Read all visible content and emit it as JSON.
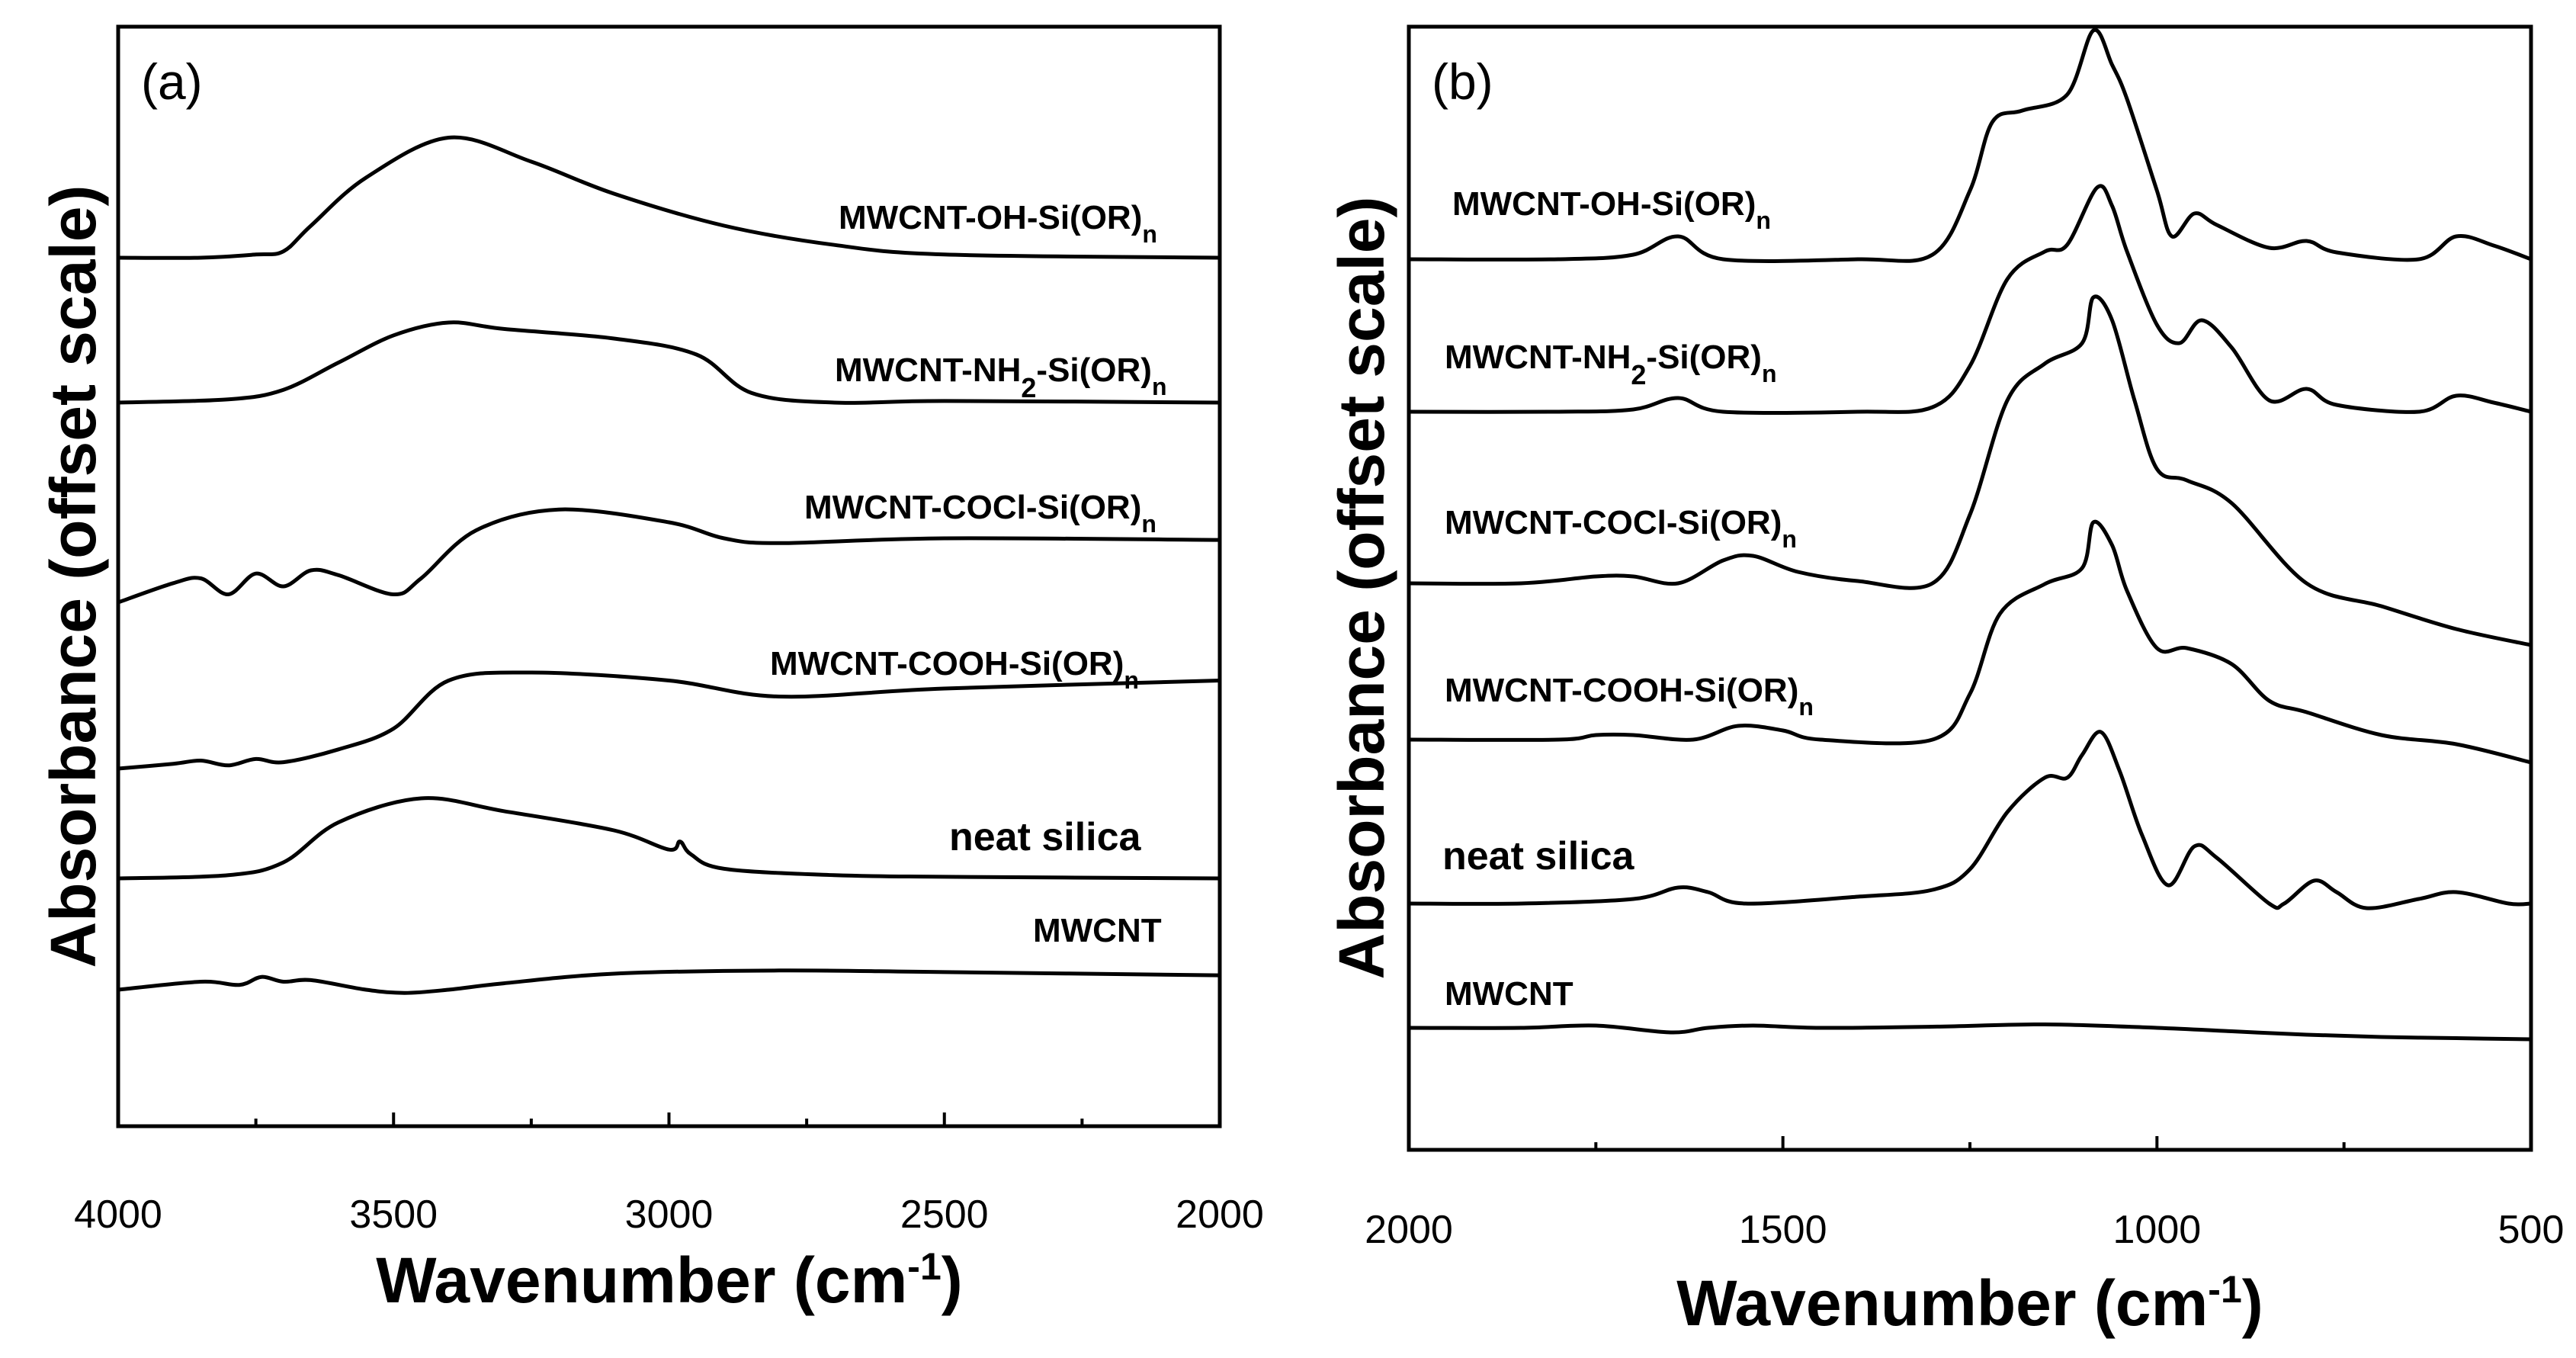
{
  "chart_data": [
    {
      "type": "line",
      "panel_label": "(a)",
      "xlabel": "Wavenumber (cm",
      "xlabel_sup": "-1",
      "xlabel_close": ")",
      "ylabel": "Absorbance (offset scale)",
      "xlim": [
        4000,
        2000
      ],
      "x_ticks": [
        4000,
        3500,
        3000,
        2500,
        2000
      ],
      "y_ticks_shown": false,
      "series": [
        {
          "name": "MWCNT-OH-Si(OR)",
          "sub": "n",
          "mid": "",
          "points": [
            [
              4000,
              0.0
            ],
            [
              3850,
              0.0
            ],
            [
              3750,
              0.02
            ],
            [
              3700,
              0.04
            ],
            [
              3650,
              0.2
            ],
            [
              3550,
              0.5
            ],
            [
              3400,
              0.75
            ],
            [
              3250,
              0.6
            ],
            [
              3100,
              0.4
            ],
            [
              2900,
              0.2
            ],
            [
              2700,
              0.08
            ],
            [
              2500,
              0.02
            ],
            [
              2000,
              0.0
            ]
          ]
        },
        {
          "name": "MWCNT-NH",
          "sub": "n",
          "mid": "2",
          "tail": "-Si(OR)",
          "points": [
            [
              4000,
              0.0
            ],
            [
              3800,
              0.02
            ],
            [
              3700,
              0.08
            ],
            [
              3600,
              0.25
            ],
            [
              3500,
              0.42
            ],
            [
              3400,
              0.5
            ],
            [
              3300,
              0.46
            ],
            [
              3100,
              0.4
            ],
            [
              2950,
              0.3
            ],
            [
              2850,
              0.06
            ],
            [
              2700,
              0.0
            ],
            [
              2500,
              0.01
            ],
            [
              2000,
              0.0
            ]
          ]
        },
        {
          "name": "MWCNT-COCl-Si(OR)",
          "sub": "n",
          "mid": "",
          "points": [
            [
              4000,
              0.0
            ],
            [
              3900,
              0.12
            ],
            [
              3850,
              0.15
            ],
            [
              3800,
              0.05
            ],
            [
              3750,
              0.18
            ],
            [
              3700,
              0.1
            ],
            [
              3650,
              0.2
            ],
            [
              3600,
              0.17
            ],
            [
              3500,
              0.05
            ],
            [
              3450,
              0.15
            ],
            [
              3350,
              0.45
            ],
            [
              3200,
              0.58
            ],
            [
              3000,
              0.5
            ],
            [
              2900,
              0.4
            ],
            [
              2800,
              0.37
            ],
            [
              2500,
              0.4
            ],
            [
              2000,
              0.39
            ]
          ]
        },
        {
          "name": "MWCNT-COOH-Si(OR)",
          "sub": "n",
          "mid": "",
          "points": [
            [
              4000,
              0.0
            ],
            [
              3900,
              0.03
            ],
            [
              3850,
              0.05
            ],
            [
              3800,
              0.02
            ],
            [
              3750,
              0.06
            ],
            [
              3700,
              0.04
            ],
            [
              3600,
              0.12
            ],
            [
              3500,
              0.25
            ],
            [
              3400,
              0.55
            ],
            [
              3250,
              0.6
            ],
            [
              3000,
              0.55
            ],
            [
              2800,
              0.45
            ],
            [
              2500,
              0.5
            ],
            [
              2000,
              0.55
            ]
          ]
        },
        {
          "name": "neat silica",
          "sub": "",
          "mid": "",
          "points": [
            [
              4000,
              0.0
            ],
            [
              3800,
              0.02
            ],
            [
              3700,
              0.1
            ],
            [
              3600,
              0.35
            ],
            [
              3450,
              0.5
            ],
            [
              3300,
              0.42
            ],
            [
              3100,
              0.3
            ],
            [
              3000,
              0.18
            ],
            [
              2980,
              0.23
            ],
            [
              2960,
              0.15
            ],
            [
              2900,
              0.06
            ],
            [
              2700,
              0.02
            ],
            [
              2500,
              0.01
            ],
            [
              2000,
              0.0
            ]
          ]
        },
        {
          "name": "MWCNT",
          "sub": "",
          "mid": "",
          "points": [
            [
              4000,
              0.0
            ],
            [
              3850,
              0.05
            ],
            [
              3780,
              0.03
            ],
            [
              3740,
              0.08
            ],
            [
              3700,
              0.05
            ],
            [
              3650,
              0.06
            ],
            [
              3550,
              0.0
            ],
            [
              3480,
              -0.02
            ],
            [
              3400,
              0.0
            ],
            [
              3300,
              0.04
            ],
            [
              3100,
              0.1
            ],
            [
              2800,
              0.12
            ],
            [
              2500,
              0.11
            ],
            [
              2000,
              0.09
            ]
          ]
        }
      ]
    },
    {
      "type": "line",
      "panel_label": "(b)",
      "xlabel": "Wavenumber (cm",
      "xlabel_sup": "-1",
      "xlabel_close": ")",
      "ylabel": "Absorbance (offset scale)",
      "xlim": [
        2000,
        500
      ],
      "x_ticks": [
        2000,
        1500,
        1000,
        500
      ],
      "y_ticks_shown": false,
      "series": [
        {
          "name": "MWCNT-OH-Si(OR)",
          "sub": "n",
          "mid": "",
          "points": [
            [
              2000,
              0.0
            ],
            [
              1800,
              0.0
            ],
            [
              1700,
              0.02
            ],
            [
              1640,
              0.1
            ],
            [
              1580,
              0.0
            ],
            [
              1400,
              0.0
            ],
            [
              1300,
              0.02
            ],
            [
              1250,
              0.3
            ],
            [
              1220,
              0.6
            ],
            [
              1180,
              0.65
            ],
            [
              1120,
              0.72
            ],
            [
              1085,
              1.0
            ],
            [
              1060,
              0.85
            ],
            [
              1040,
              0.7
            ],
            [
              1000,
              0.3
            ],
            [
              980,
              0.1
            ],
            [
              950,
              0.2
            ],
            [
              920,
              0.15
            ],
            [
              850,
              0.05
            ],
            [
              800,
              0.08
            ],
            [
              760,
              0.03
            ],
            [
              650,
              0.0
            ],
            [
              600,
              0.1
            ],
            [
              550,
              0.06
            ],
            [
              500,
              0.0
            ]
          ]
        },
        {
          "name": "MWCNT-NH",
          "sub": "n",
          "mid": "2",
          "tail": "-Si(OR)",
          "points": [
            [
              2000,
              0.0
            ],
            [
              1800,
              0.0
            ],
            [
              1700,
              0.01
            ],
            [
              1640,
              0.06
            ],
            [
              1580,
              0.0
            ],
            [
              1400,
              0.0
            ],
            [
              1300,
              0.02
            ],
            [
              1250,
              0.2
            ],
            [
              1200,
              0.58
            ],
            [
              1150,
              0.7
            ],
            [
              1120,
              0.73
            ],
            [
              1080,
              0.98
            ],
            [
              1060,
              0.9
            ],
            [
              1040,
              0.7
            ],
            [
              1000,
              0.38
            ],
            [
              970,
              0.3
            ],
            [
              940,
              0.4
            ],
            [
              900,
              0.28
            ],
            [
              850,
              0.05
            ],
            [
              800,
              0.1
            ],
            [
              760,
              0.03
            ],
            [
              650,
              0.0
            ],
            [
              600,
              0.07
            ],
            [
              550,
              0.04
            ],
            [
              500,
              0.0
            ]
          ]
        },
        {
          "name": "MWCNT-COCl-Si(OR)",
          "sub": "n",
          "mid": "",
          "points": [
            [
              2000,
              0.0
            ],
            [
              1850,
              0.0
            ],
            [
              1750,
              0.03
            ],
            [
              1700,
              0.03
            ],
            [
              1640,
              0.0
            ],
            [
              1580,
              0.1
            ],
            [
              1540,
              0.12
            ],
            [
              1480,
              0.05
            ],
            [
              1400,
              0.01
            ],
            [
              1300,
              0.0
            ],
            [
              1250,
              0.3
            ],
            [
              1200,
              0.8
            ],
            [
              1150,
              0.96
            ],
            [
              1100,
              1.05
            ],
            [
              1085,
              1.25
            ],
            [
              1060,
              1.15
            ],
            [
              1030,
              0.8
            ],
            [
              1000,
              0.5
            ],
            [
              960,
              0.45
            ],
            [
              900,
              0.35
            ],
            [
              800,
              0.0
            ],
            [
              700,
              -0.1
            ],
            [
              600,
              -0.2
            ],
            [
              500,
              -0.27
            ]
          ]
        },
        {
          "name": "MWCNT-COOH-Si(OR)",
          "sub": "n",
          "mid": "",
          "points": [
            [
              2000,
              0.0
            ],
            [
              1800,
              0.0
            ],
            [
              1750,
              0.02
            ],
            [
              1700,
              0.02
            ],
            [
              1620,
              0.0
            ],
            [
              1560,
              0.06
            ],
            [
              1500,
              0.04
            ],
            [
              1450,
              0.0
            ],
            [
              1300,
              0.0
            ],
            [
              1250,
              0.2
            ],
            [
              1210,
              0.55
            ],
            [
              1150,
              0.68
            ],
            [
              1100,
              0.75
            ],
            [
              1085,
              0.95
            ],
            [
              1060,
              0.85
            ],
            [
              1040,
              0.65
            ],
            [
              1000,
              0.4
            ],
            [
              960,
              0.4
            ],
            [
              900,
              0.33
            ],
            [
              850,
              0.17
            ],
            [
              800,
              0.12
            ],
            [
              700,
              0.02
            ],
            [
              600,
              -0.02
            ],
            [
              500,
              -0.1
            ]
          ]
        },
        {
          "name": "neat silica",
          "sub": "",
          "mid": "",
          "points": [
            [
              2000,
              0.0
            ],
            [
              1850,
              0.0
            ],
            [
              1700,
              0.02
            ],
            [
              1640,
              0.07
            ],
            [
              1600,
              0.05
            ],
            [
              1550,
              0.0
            ],
            [
              1400,
              0.03
            ],
            [
              1300,
              0.06
            ],
            [
              1250,
              0.15
            ],
            [
              1200,
              0.4
            ],
            [
              1150,
              0.55
            ],
            [
              1120,
              0.55
            ],
            [
              1100,
              0.65
            ],
            [
              1075,
              0.75
            ],
            [
              1050,
              0.58
            ],
            [
              1020,
              0.3
            ],
            [
              985,
              0.08
            ],
            [
              950,
              0.25
            ],
            [
              920,
              0.2
            ],
            [
              850,
              0.0
            ],
            [
              830,
              0.0
            ],
            [
              790,
              0.1
            ],
            [
              760,
              0.05
            ],
            [
              720,
              -0.02
            ],
            [
              650,
              0.02
            ],
            [
              600,
              0.05
            ],
            [
              530,
              0.0
            ],
            [
              500,
              0.0
            ]
          ]
        },
        {
          "name": "MWCNT",
          "sub": "",
          "mid": "",
          "points": [
            [
              2000,
              0.0
            ],
            [
              1850,
              0.0
            ],
            [
              1750,
              0.01
            ],
            [
              1650,
              -0.02
            ],
            [
              1600,
              0.0
            ],
            [
              1540,
              0.01
            ],
            [
              1450,
              0.0
            ],
            [
              1300,
              0.005
            ],
            [
              1150,
              0.015
            ],
            [
              1000,
              0.0
            ],
            [
              900,
              -0.015
            ],
            [
              800,
              -0.03
            ],
            [
              700,
              -0.04
            ],
            [
              600,
              -0.045
            ],
            [
              500,
              -0.05
            ]
          ]
        }
      ]
    }
  ]
}
